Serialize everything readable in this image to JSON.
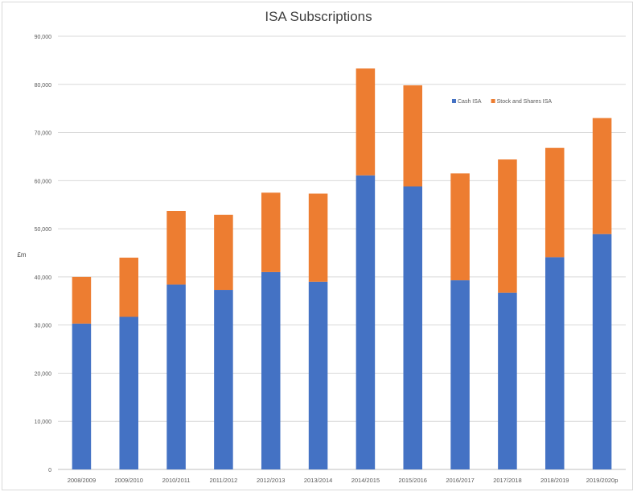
{
  "chart_data": {
    "type": "bar",
    "stacked": true,
    "title": "ISA Subscriptions",
    "xlabel": "",
    "ylabel": "£m",
    "ylim": [
      0,
      90000
    ],
    "yticks": [
      0,
      10000,
      20000,
      30000,
      40000,
      50000,
      60000,
      70000,
      80000,
      90000
    ],
    "ytick_labels": [
      "0",
      "10,000",
      "20,000",
      "30,000",
      "40,000",
      "50,000",
      "60,000",
      "70,000",
      "80,000",
      "90,000"
    ],
    "grid": true,
    "legend_position": "top-right",
    "categories": [
      "2008/2009",
      "2009/2010",
      "2010/2011",
      "2011/2012",
      "2012/2013",
      "2013/2014",
      "2014/2015",
      "2015/2016",
      "2016/2017",
      "2017/2018",
      "2018/2019",
      "2019/2020p"
    ],
    "series": [
      {
        "name": "Cash ISA",
        "color": "#4472c4",
        "values": [
          30300,
          31700,
          38400,
          37300,
          41000,
          39000,
          61100,
          58800,
          39300,
          36700,
          44100,
          48900
        ]
      },
      {
        "name": "Stock and Shares ISA",
        "color": "#ed7d31",
        "values": [
          9700,
          12300,
          15300,
          15600,
          16500,
          18300,
          22200,
          21000,
          22200,
          27700,
          22700,
          24100
        ]
      }
    ]
  }
}
